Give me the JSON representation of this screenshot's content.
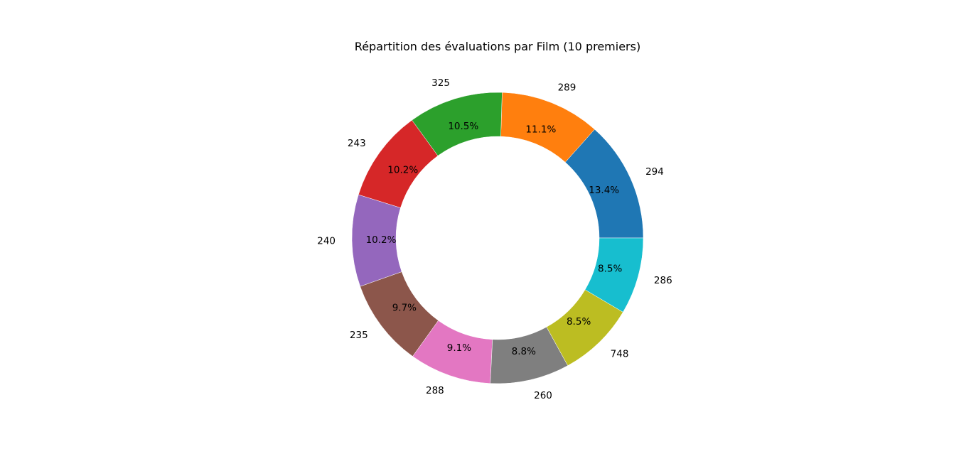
{
  "chart_data": {
    "type": "pie",
    "style": "donut",
    "title": "Répartition des évaluations par Film (10 premiers)",
    "start_angle_deg": 0,
    "direction": "counterclockwise",
    "labels": [
      "294",
      "289",
      "325",
      "243",
      "240",
      "235",
      "288",
      "260",
      "748",
      "286"
    ],
    "percentages": [
      13.4,
      11.1,
      10.5,
      10.2,
      10.2,
      9.7,
      9.1,
      8.8,
      8.5,
      8.5
    ],
    "percentage_labels": [
      "13.4%",
      "11.1%",
      "10.5%",
      "10.2%",
      "10.2%",
      "9.7%",
      "9.1%",
      "8.8%",
      "8.5%",
      "8.5%"
    ],
    "colors": [
      "#1f77b4",
      "#ff7f0e",
      "#2ca02c",
      "#d62728",
      "#9467bd",
      "#8c564b",
      "#e377c2",
      "#7f7f7f",
      "#bcbd22",
      "#17becf"
    ],
    "legend": "none"
  }
}
